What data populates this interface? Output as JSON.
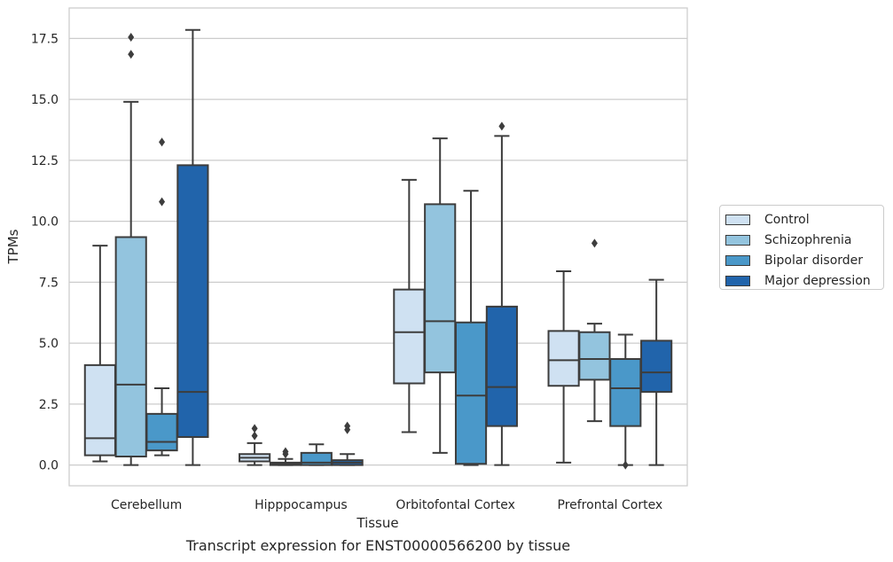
{
  "chart_data": {
    "type": "box",
    "xlabel": "Tissue",
    "ylabel": "TPMs",
    "ylim": [
      -0.85,
      18.75
    ],
    "yticks": [
      "0.0",
      "2.5",
      "5.0",
      "7.5",
      "10.0",
      "12.5",
      "15.0",
      "17.5"
    ],
    "ytick_values": [
      0,
      2.5,
      5,
      7.5,
      10,
      12.5,
      15,
      17.5
    ],
    "grid": "horizontal",
    "legend_position": "right",
    "categories": [
      "Cerebellum",
      "Hipppocampus",
      "Orbitofontal Cortex",
      "Prefrontal Cortex"
    ],
    "series": [
      {
        "name": "Control",
        "color": "#cfe1f2",
        "boxes": [
          {
            "whisker_low": 0.15,
            "q1": 0.4,
            "median": 1.1,
            "q3": 4.1,
            "whisker_high": 9.0,
            "outliers": []
          },
          {
            "whisker_low": 0.0,
            "q1": 0.15,
            "median": 0.3,
            "q3": 0.45,
            "whisker_high": 0.9,
            "outliers": [
              1.2,
              1.5
            ]
          },
          {
            "whisker_low": 1.35,
            "q1": 3.35,
            "median": 5.45,
            "q3": 7.2,
            "whisker_high": 11.7,
            "outliers": []
          },
          {
            "whisker_low": 0.1,
            "q1": 3.25,
            "median": 4.3,
            "q3": 5.5,
            "whisker_high": 7.95,
            "outliers": []
          }
        ]
      },
      {
        "name": "Schizophrenia",
        "color": "#93c4de",
        "boxes": [
          {
            "whisker_low": 0.0,
            "q1": 0.35,
            "median": 3.3,
            "q3": 9.35,
            "whisker_high": 14.9,
            "outliers": [
              16.85,
              17.55
            ]
          },
          {
            "whisker_low": 0.0,
            "q1": 0.0,
            "median": 0.05,
            "q3": 0.1,
            "whisker_high": 0.25,
            "outliers": [
              0.45,
              0.55
            ]
          },
          {
            "whisker_low": 0.5,
            "q1": 3.8,
            "median": 5.9,
            "q3": 10.7,
            "whisker_high": 13.4,
            "outliers": []
          },
          {
            "whisker_low": 1.8,
            "q1": 3.5,
            "median": 4.35,
            "q3": 5.45,
            "whisker_high": 5.8,
            "outliers": [
              9.1
            ]
          }
        ]
      },
      {
        "name": "Bipolar disorder",
        "color": "#4a98c9",
        "boxes": [
          {
            "whisker_low": 0.4,
            "q1": 0.6,
            "median": 0.95,
            "q3": 2.1,
            "whisker_high": 3.15,
            "outliers": [
              10.8,
              13.25
            ]
          },
          {
            "whisker_low": 0.0,
            "q1": 0.0,
            "median": 0.1,
            "q3": 0.5,
            "whisker_high": 0.85,
            "outliers": []
          },
          {
            "whisker_low": 0.0,
            "q1": 0.05,
            "median": 2.85,
            "q3": 5.85,
            "whisker_high": 11.25,
            "outliers": []
          },
          {
            "whisker_low": 0.0,
            "q1": 1.6,
            "median": 3.15,
            "q3": 4.35,
            "whisker_high": 5.35,
            "outliers": [
              0.0
            ]
          }
        ]
      },
      {
        "name": "Major depression",
        "color": "#2164ab",
        "boxes": [
          {
            "whisker_low": 0.0,
            "q1": 1.15,
            "median": 3.0,
            "q3": 12.3,
            "whisker_high": 17.85,
            "outliers": []
          },
          {
            "whisker_low": 0.0,
            "q1": 0.0,
            "median": 0.1,
            "q3": 0.2,
            "whisker_high": 0.45,
            "outliers": [
              1.45,
              1.6
            ]
          },
          {
            "whisker_low": 0.0,
            "q1": 1.6,
            "median": 3.2,
            "q3": 6.5,
            "whisker_high": 13.5,
            "outliers": [
              13.9
            ]
          },
          {
            "whisker_low": 0.0,
            "q1": 3.0,
            "median": 3.8,
            "q3": 5.1,
            "whisker_high": 7.6,
            "outliers": []
          }
        ]
      }
    ]
  },
  "caption": "Transcript expression for ENST00000566200 by tissue"
}
